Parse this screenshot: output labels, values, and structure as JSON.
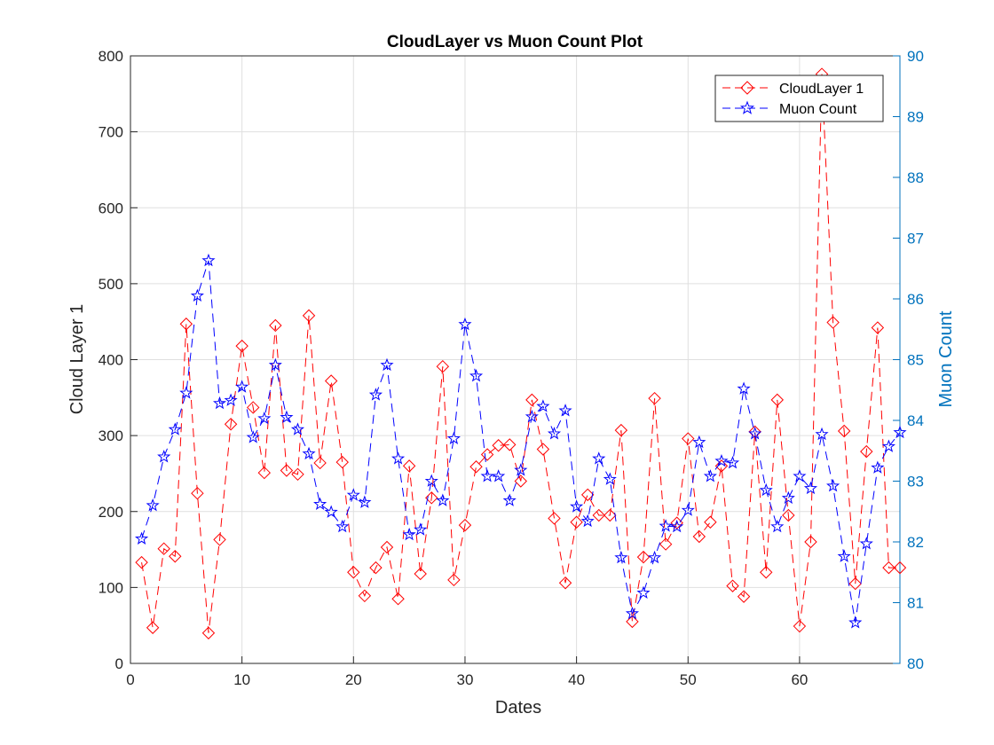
{
  "chart_data": {
    "type": "line",
    "title": "CloudLayer vs Muon Count Plot",
    "xlabel": "Dates",
    "ylabel_left": "Cloud Layer 1",
    "ylabel_right": "Muon Count",
    "xlim": [
      0,
      69
    ],
    "ylim_left": [
      0,
      800
    ],
    "ylim_right": [
      80,
      90
    ],
    "xticks": [
      "0",
      "10",
      "20",
      "30",
      "40",
      "50",
      "60"
    ],
    "yticks_left": [
      "0",
      "100",
      "200",
      "300",
      "400",
      "500",
      "600",
      "700",
      "800"
    ],
    "yticks_right": [
      "80",
      "81",
      "82",
      "83",
      "84",
      "85",
      "86",
      "87",
      "88",
      "89",
      "90"
    ],
    "grid": true,
    "legend_position": "top-right",
    "colors": {
      "left_axis": "#000000",
      "right_axis": "#0072bd",
      "cloud": "#ff0000",
      "muon": "#0000ff"
    },
    "x": [
      1,
      2,
      3,
      4,
      5,
      6,
      7,
      8,
      9,
      10,
      11,
      12,
      13,
      14,
      15,
      16,
      17,
      18,
      19,
      20,
      21,
      22,
      23,
      24,
      25,
      26,
      27,
      28,
      29,
      30,
      31,
      32,
      33,
      34,
      35,
      36,
      37,
      38,
      39,
      40,
      41,
      42,
      43,
      44,
      45,
      46,
      47,
      48,
      49,
      50,
      51,
      52,
      53,
      54,
      55,
      56,
      57,
      58,
      59,
      60,
      61,
      62,
      63,
      64,
      65,
      66,
      67,
      68,
      69
    ],
    "series": [
      {
        "name": "CloudLayer 1",
        "axis": "left",
        "marker": "diamond",
        "values": [
          133,
          47,
          151,
          141,
          447,
          224,
          40,
          163,
          315,
          418,
          337,
          251,
          445,
          254,
          249,
          458,
          264,
          372,
          265,
          120,
          89,
          126,
          153,
          85,
          260,
          118,
          218,
          391,
          110,
          182,
          259,
          275,
          287,
          288,
          240,
          347,
          282,
          191,
          106,
          186,
          222,
          195,
          195,
          307,
          55,
          140,
          349,
          157,
          185,
          296,
          167,
          186,
          260,
          102,
          88,
          305,
          120,
          347,
          195,
          49,
          160,
          776,
          449,
          306,
          105,
          279,
          442,
          126,
          126
        ]
      },
      {
        "name": "Muon Count",
        "axis": "right",
        "marker": "pentagram",
        "values": [
          82.05,
          82.6,
          83.4,
          83.85,
          84.45,
          86.05,
          86.63,
          84.28,
          84.33,
          84.55,
          83.72,
          84.03,
          84.91,
          84.05,
          83.85,
          83.45,
          82.62,
          82.49,
          82.25,
          82.77,
          82.65,
          84.42,
          84.91,
          83.37,
          82.12,
          82.2,
          83.0,
          82.68,
          83.7,
          85.58,
          84.73,
          83.08,
          83.08,
          82.68,
          83.18,
          84.06,
          84.23,
          83.78,
          84.16,
          82.58,
          82.34,
          83.37,
          83.03,
          81.74,
          80.82,
          81.16,
          81.74,
          82.26,
          82.25,
          82.52,
          83.64,
          83.08,
          83.33,
          83.3,
          84.52,
          83.78,
          82.85,
          82.25,
          82.72,
          83.08,
          82.88,
          83.77,
          82.92,
          81.76,
          80.67,
          81.97,
          83.22,
          83.57,
          83.8
        ]
      }
    ]
  }
}
